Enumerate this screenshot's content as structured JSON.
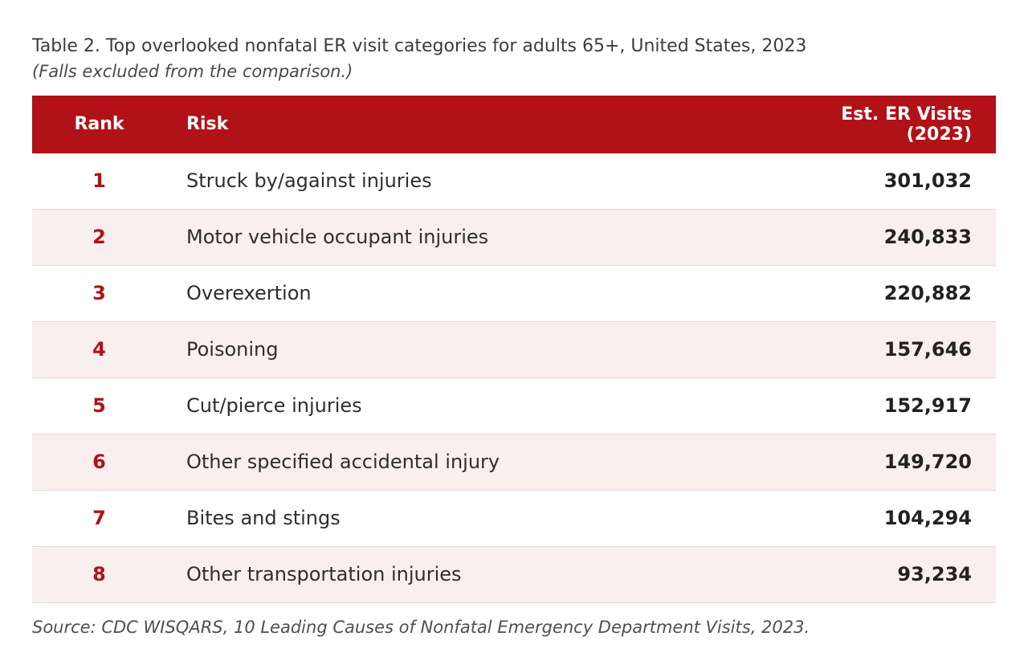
{
  "title": "Table 2. Top overlooked nonfatal ER visit categories for adults 65+, United States, 2023",
  "subtitle": "(Falls excluded from the comparison.)",
  "source": "Source: CDC WISQARS, 10 Leading Causes of Nonfatal Emergency Department Visits, 2023.",
  "colors": {
    "header_bg": "#B11218",
    "header_text": "#FFFFFF",
    "rank_text": "#B11218",
    "alt_row_bg": "#FAEFEF",
    "row_border": "#E7D6D6"
  },
  "table": {
    "columns": [
      "Rank",
      "Risk",
      "Est. ER Visits (2023)"
    ],
    "rows": [
      {
        "rank": "1",
        "risk": "Struck by/against injuries",
        "visits": "301,032"
      },
      {
        "rank": "2",
        "risk": "Motor vehicle occupant injuries",
        "visits": "240,833"
      },
      {
        "rank": "3",
        "risk": "Overexertion",
        "visits": "220,882"
      },
      {
        "rank": "4",
        "risk": "Poisoning",
        "visits": "157,646"
      },
      {
        "rank": "5",
        "risk": "Cut/pierce injuries",
        "visits": "152,917"
      },
      {
        "rank": "6",
        "risk": "Other specified accidental injury",
        "visits": "149,720"
      },
      {
        "rank": "7",
        "risk": "Bites and stings",
        "visits": "104,294"
      },
      {
        "rank": "8",
        "risk": "Other transportation injuries",
        "visits": "93,234"
      }
    ]
  },
  "chart_data": {
    "type": "table",
    "title": "Table 2. Top overlooked nonfatal ER visit categories for adults 65+, United States, 2023",
    "subtitle": "(Falls excluded from the comparison.)",
    "columns": [
      "Rank",
      "Risk",
      "Est. ER Visits (2023)"
    ],
    "categories": [
      "Struck by/against injuries",
      "Motor vehicle occupant injuries",
      "Overexertion",
      "Poisoning",
      "Cut/pierce injuries",
      "Other specified accidental injury",
      "Bites and stings",
      "Other transportation injuries"
    ],
    "values": [
      301032,
      240833,
      220882,
      157646,
      152917,
      149720,
      104294,
      93234
    ],
    "source": "Source: CDC WISQARS, 10 Leading Causes of Nonfatal Emergency Department Visits, 2023."
  }
}
